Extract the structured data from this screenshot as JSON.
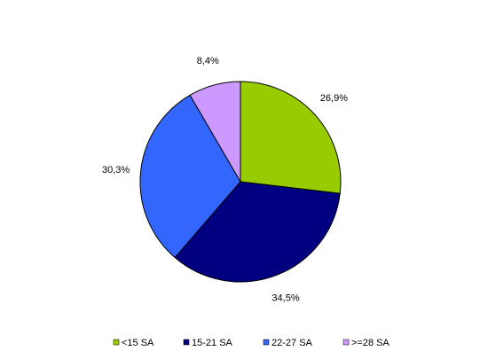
{
  "chart_data": {
    "type": "pie",
    "categories": [
      "<15 SA",
      "15-21 SA",
      "22-27 SA",
      ">=28 SA"
    ],
    "values": [
      26.9,
      34.5,
      30.3,
      8.4
    ],
    "value_labels": [
      "26,9%",
      "34,5%",
      "30,3%",
      "8,4%"
    ],
    "colors": [
      "#99cc00",
      "#000080",
      "#3366ff",
      "#cc99ff"
    ],
    "legend": "bottom"
  }
}
